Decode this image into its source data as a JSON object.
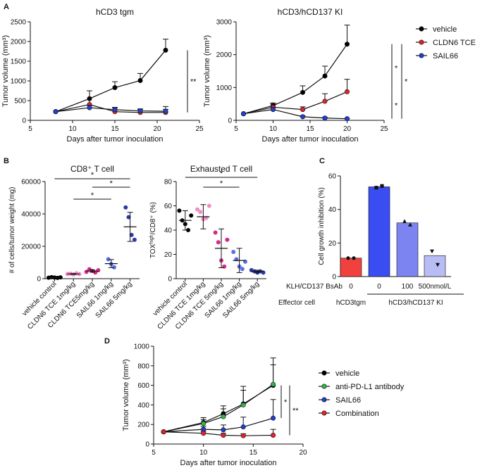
{
  "chart_data": [
    {
      "panel": "A",
      "type": "line",
      "title": "hCD3 tgm",
      "xlabel": "Days after tumor inoculation",
      "ylabel": "Tumor volume (mm³)",
      "xlim": [
        5,
        25
      ],
      "ylim": [
        0,
        2500
      ],
      "xticks": [
        5,
        10,
        15,
        20,
        25
      ],
      "yticks": [
        0,
        500,
        1000,
        1500,
        2000,
        2500
      ],
      "series": [
        {
          "name": "vehicle",
          "color": "#000000",
          "x": [
            8,
            12,
            15,
            18,
            21
          ],
          "y": [
            220,
            550,
            830,
            1010,
            1780
          ],
          "err": [
            0,
            200,
            150,
            180,
            280
          ]
        },
        {
          "name": "CLDN6 TCE",
          "color": "#e8202a",
          "x": [
            8,
            12,
            15,
            18,
            21
          ],
          "y": [
            220,
            400,
            220,
            200,
            200
          ],
          "err": [
            0,
            350,
            100,
            80,
            150
          ]
        },
        {
          "name": "SAIL66",
          "color": "#1f3fd6",
          "x": [
            8,
            12,
            15,
            18,
            21
          ],
          "y": [
            220,
            320,
            270,
            240,
            230
          ],
          "err": [
            0,
            60,
            60,
            50,
            50
          ]
        }
      ],
      "sig": [
        {
          "label": "**",
          "from": 1780,
          "to": 200
        }
      ]
    },
    {
      "panel": "",
      "type": "line",
      "title": "hCD3/hCD137 KI",
      "xlabel": "Days after tumor inoculation",
      "ylabel": "Tumor volume (mm³)",
      "xlim": [
        5,
        25
      ],
      "ylim": [
        0,
        3000
      ],
      "xticks": [
        5,
        10,
        15,
        20,
        25
      ],
      "yticks": [
        0,
        1000,
        2000,
        3000
      ],
      "series": [
        {
          "name": "vehicle",
          "color": "#000000",
          "x": [
            6,
            10,
            14,
            17,
            20
          ],
          "y": [
            200,
            450,
            850,
            1350,
            2320
          ],
          "err": [
            0,
            80,
            200,
            300,
            580
          ]
        },
        {
          "name": "CLDN6 TCE",
          "color": "#e8202a",
          "x": [
            6,
            10,
            14,
            17,
            20
          ],
          "y": [
            200,
            400,
            330,
            580,
            870
          ],
          "err": [
            0,
            100,
            80,
            230,
            380
          ]
        },
        {
          "name": "SAIL66",
          "color": "#1f3fd6",
          "x": [
            6,
            10,
            14,
            17,
            20
          ],
          "y": [
            200,
            330,
            110,
            70,
            50
          ],
          "err": [
            0,
            60,
            30,
            20,
            10
          ]
        }
      ],
      "sig": [
        {
          "label": "*",
          "from": 2320,
          "to": 870
        },
        {
          "label": "*",
          "from": 2320,
          "to": 50
        },
        {
          "label": "*",
          "from": 870,
          "to": 50
        }
      ]
    },
    {
      "panel": "B",
      "type": "scatter",
      "title": "CD8⁺ T cell",
      "ylabel": "# of cells/tumor weight (mg)",
      "ylim": [
        0,
        60000
      ],
      "yticks": [
        0,
        20000,
        40000,
        60000
      ],
      "categories": [
        "vehicle control",
        "CLDN6 TCE 1mg/kg",
        "CLDN6 TCE5mg/kg",
        "SAIL66 1mg/kg",
        "SAIL66 5mg/kg"
      ],
      "colors": [
        "#000000",
        "#f08ec2",
        "#d42a86",
        "#5b6fe8",
        "#2b3aa8"
      ],
      "points": [
        [
          600,
          900,
          700,
          500,
          800
        ],
        [
          2900,
          3100,
          2600,
          3300,
          2800
        ],
        [
          4200,
          5800,
          4800,
          3800,
          5200
        ],
        [
          12000,
          9000,
          7000
        ],
        [
          44000,
          38000,
          27000,
          24000
        ]
      ],
      "mean": [
        700,
        2900,
        4700,
        9300,
        32000
      ],
      "sd": [
        150,
        250,
        700,
        2500,
        9000
      ],
      "sig": [
        "*",
        "*",
        "*"
      ]
    },
    {
      "panel": "",
      "type": "scatter",
      "title": "Exhausted T cell",
      "ylabel": "TOX^high/CD8⁺ (%)",
      "ylim": [
        0,
        80
      ],
      "yticks": [
        0,
        20,
        40,
        60,
        80
      ],
      "categories": [
        "vehicle control",
        "CLDN6 TCE 1mg/kg",
        "CLDN6 TCE 5mg/kg",
        "SAIL66 1mg/kg",
        "SAIL66 5mg/kg"
      ],
      "colors": [
        "#000000",
        "#f08ec2",
        "#d42a86",
        "#5b6fe8",
        "#2b3aa8"
      ],
      "points": [
        [
          56,
          48,
          45,
          40,
          52
        ],
        [
          57,
          55,
          49,
          50,
          60
        ],
        [
          38,
          30,
          15,
          10,
          32
        ],
        [
          22,
          16,
          10,
          8,
          14
        ],
        [
          7,
          6,
          5,
          6,
          5
        ]
      ],
      "mean": [
        48,
        51,
        25,
        15,
        6
      ],
      "sd": [
        8,
        10,
        16,
        10,
        1
      ],
      "sig": [
        "*",
        "*"
      ]
    },
    {
      "panel": "C",
      "type": "bar",
      "title": "",
      "ylabel": "Cell growth inhibition (%)",
      "ylim": [
        0,
        60
      ],
      "yticks": [
        0,
        20,
        40,
        60
      ],
      "categories": [
        "0",
        "0",
        "100",
        "500nmol/L"
      ],
      "values": [
        11,
        53.5,
        32,
        12.5
      ],
      "colors": [
        "#f0413f",
        "#3a4df2",
        "#7c84f2",
        "#b8bdf5"
      ],
      "points": [
        [
          11,
          11
        ],
        [
          53,
          54
        ],
        [
          33,
          31
        ],
        [
          15,
          7
        ]
      ],
      "row_labels": [
        "KLH/CD137 BsAb",
        "Effector cell"
      ],
      "effector_groups": [
        "hCD3tgm",
        "hCD3/hCD137 KI"
      ]
    },
    {
      "panel": "D",
      "type": "line",
      "title": "",
      "xlabel": "Days after tumor inoculation",
      "ylabel": "Tumor volume (mm³)",
      "xlim": [
        5,
        20
      ],
      "ylim": [
        0,
        1000
      ],
      "xticks": [
        5,
        10,
        15,
        20
      ],
      "yticks": [
        0,
        200,
        400,
        600,
        800,
        1000
      ],
      "series": [
        {
          "name": "vehicle",
          "color": "#000000",
          "x": [
            6,
            10,
            12,
            14,
            17
          ],
          "y": [
            125,
            220,
            310,
            410,
            600
          ],
          "err": [
            0,
            50,
            80,
            180,
            280
          ]
        },
        {
          "name": "anti-PD-L1 antibody",
          "color": "#2db84b",
          "x": [
            6,
            10,
            12,
            14,
            17
          ],
          "y": [
            125,
            210,
            280,
            400,
            610
          ],
          "err": [
            0,
            40,
            80,
            150,
            200
          ]
        },
        {
          "name": "SAIL66",
          "color": "#1f3fd6",
          "x": [
            6,
            10,
            12,
            14,
            17
          ],
          "y": [
            125,
            150,
            145,
            175,
            265
          ],
          "err": [
            0,
            30,
            50,
            100,
            190
          ]
        },
        {
          "name": "Combination",
          "color": "#e8202a",
          "x": [
            6,
            10,
            12,
            14,
            17
          ],
          "y": [
            125,
            110,
            90,
            85,
            90
          ],
          "err": [
            0,
            20,
            20,
            20,
            60
          ]
        }
      ],
      "sig": [
        {
          "label": "*",
          "from": 600,
          "to": 265
        },
        {
          "label": "**",
          "from": 600,
          "to": 90
        }
      ]
    }
  ],
  "panel_labels": [
    "A",
    "B",
    "C",
    "D"
  ],
  "legend_A": [
    "vehicle",
    "CLDN6 TCE",
    "SAIL66"
  ],
  "legend_D": [
    "vehicle",
    "anti-PD-L1 antibody",
    "SAIL66",
    "Combination"
  ]
}
